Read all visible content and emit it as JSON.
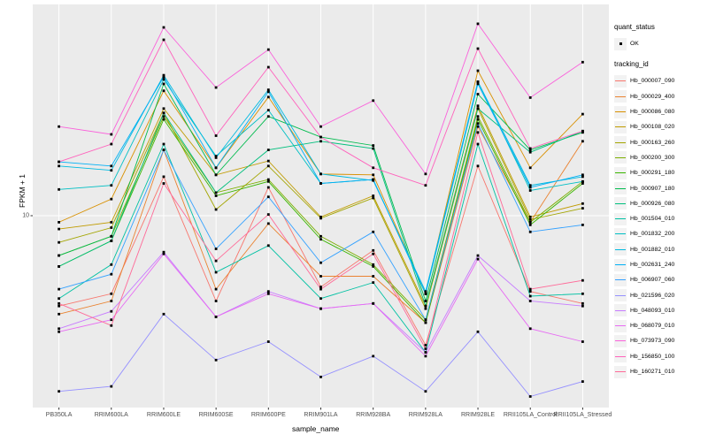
{
  "figure": {
    "background": "#ffffff",
    "panel_bg": "#ebebeb",
    "gridline_color": "#ffffff",
    "tick_color": "#333333",
    "tick_label_color": "#4d4d4d",
    "point_color": "#000000"
  },
  "y_axis": {
    "title": "FPKM + 1",
    "tick_labels": [
      "10"
    ]
  },
  "x_axis": {
    "title": "sample_name"
  },
  "legend": {
    "quant_title": "quant_status",
    "quant_items": [
      {
        "label": "OK",
        "marker": "black-point"
      }
    ],
    "tracking_title": "tracking_id"
  },
  "chart_data": {
    "type": "line",
    "title": "",
    "xlabel": "sample_name",
    "ylabel": "FPKM + 1",
    "y_scale": "log10",
    "ylim": [
      2.2,
      50
    ],
    "y_breaks": [
      10
    ],
    "grid": "on",
    "legend_position": "right",
    "marker": "small-black-square",
    "categories": [
      "PB350LA",
      "RRIM600LA",
      "RRIM600LE",
      "RRIM600SE",
      "RRIM600PE",
      "RRIM901LA",
      "RRIM928BA",
      "RRIM928LA",
      "RRIM928LE",
      "RRII105LA_Control",
      "RRII105LA_Stressed"
    ],
    "series": [
      {
        "name": "Hb_000007_090",
        "color": "#F8766D",
        "values": [
          4.9,
          5.4,
          13.6,
          5.1,
          12.5,
          5.7,
          7.6,
          3.6,
          14.8,
          5.5,
          5.0
        ]
      },
      {
        "name": "Hb_000029_400",
        "color": "#EA8331",
        "values": [
          4.6,
          5.1,
          16.8,
          5.6,
          9.4,
          6.2,
          6.2,
          4.3,
          20.2,
          9.5,
          18.0
        ]
      },
      {
        "name": "Hb_000086_080",
        "color": "#D89000",
        "values": [
          9.5,
          11.4,
          26.8,
          14.6,
          25.5,
          13.9,
          13.8,
          5.4,
          31.4,
          14.6,
          22.3
        ]
      },
      {
        "name": "Hb_000108_020",
        "color": "#C09B00",
        "values": [
          9.0,
          9.5,
          23.3,
          13.8,
          15.4,
          9.9,
          11.7,
          4.9,
          23.8,
          9.9,
          11.0
        ]
      },
      {
        "name": "Hb_000163_260",
        "color": "#A3A500",
        "values": [
          8.1,
          9.1,
          22.5,
          10.5,
          14.8,
          9.8,
          11.5,
          4.8,
          23.3,
          9.7,
          10.6
        ]
      },
      {
        "name": "Hb_000200_300",
        "color": "#7CAE00",
        "values": [
          7.3,
          8.5,
          21.9,
          12.0,
          13.3,
          8.5,
          6.8,
          4.4,
          21.9,
          9.5,
          13.1
        ]
      },
      {
        "name": "Hb_000291_180",
        "color": "#39B600",
        "values": [
          6.7,
          8.2,
          21.4,
          11.7,
          13.1,
          8.3,
          6.7,
          4.3,
          21.4,
          9.3,
          12.9
        ]
      },
      {
        "name": "Hb_000907_180",
        "color": "#00BB4E",
        "values": [
          7.3,
          8.5,
          28.3,
          13.8,
          21.9,
          18.6,
          17.4,
          5.1,
          26.1,
          16.8,
          19.3
        ]
      },
      {
        "name": "Hb_000926_080",
        "color": "#00BF7D",
        "values": [
          6.7,
          8.2,
          22.5,
          12.0,
          16.8,
          18.0,
          17.0,
          4.9,
          23.3,
          16.5,
          19.5
        ]
      },
      {
        "name": "Hb_001504_010",
        "color": "#00C1A3",
        "values": [
          5.2,
          6.8,
          17.6,
          6.4,
          7.9,
          5.2,
          5.9,
          3.4,
          17.6,
          5.3,
          5.4
        ]
      },
      {
        "name": "Hb_001832_200",
        "color": "#00BFC4",
        "values": [
          12.3,
          12.7,
          29.3,
          16.0,
          23.0,
          12.9,
          13.3,
          5.4,
          28.8,
          12.2,
          13.1
        ]
      },
      {
        "name": "Hb_001882_010",
        "color": "#00BAE0",
        "values": [
          14.8,
          14.3,
          30.3,
          15.8,
          27.0,
          13.9,
          13.2,
          5.5,
          28.8,
          12.7,
          13.6
        ]
      },
      {
        "name": "Hb_002631_240",
        "color": "#00B0F6",
        "values": [
          15.3,
          14.8,
          29.9,
          14.6,
          26.6,
          12.9,
          13.3,
          5.4,
          28.3,
          12.5,
          13.8
        ]
      },
      {
        "name": "Hb_006907_060",
        "color": "#35A2FF",
        "values": [
          5.6,
          6.3,
          16.8,
          7.7,
          11.6,
          6.9,
          8.8,
          4.4,
          20.7,
          8.8,
          9.3
        ]
      },
      {
        "name": "Hb_021596_020",
        "color": "#9590FF",
        "values": [
          2.5,
          2.6,
          4.6,
          3.2,
          3.7,
          2.8,
          3.3,
          2.5,
          4.0,
          2.4,
          2.7
        ]
      },
      {
        "name": "Hb_048093_010",
        "color": "#C77CFF",
        "values": [
          4.1,
          4.7,
          7.5,
          4.5,
          5.5,
          4.8,
          5.0,
          3.4,
          7.3,
          5.1,
          4.9
        ]
      },
      {
        "name": "Hb_068079_010",
        "color": "#E76BF3",
        "values": [
          4.0,
          4.4,
          7.4,
          4.5,
          5.4,
          4.8,
          5.0,
          3.3,
          7.1,
          4.1,
          3.7
        ]
      },
      {
        "name": "Hb_073973_090",
        "color": "#FA62DB",
        "values": [
          20.2,
          19.0,
          44.2,
          27.5,
          37.1,
          20.2,
          24.8,
          13.9,
          45.5,
          25.4,
          33.6
        ]
      },
      {
        "name": "Hb_156850_100",
        "color": "#FF62BC",
        "values": [
          15.3,
          17.6,
          40.1,
          18.8,
          32.3,
          18.6,
          14.6,
          12.7,
          37.4,
          17.0,
          19.5
        ]
      },
      {
        "name": "Hb_160271_010",
        "color": "#FF6A98",
        "values": [
          5.0,
          4.2,
          12.9,
          7.0,
          10.1,
          5.6,
          7.4,
          3.5,
          19.3,
          5.6,
          6.0
        ]
      }
    ]
  }
}
